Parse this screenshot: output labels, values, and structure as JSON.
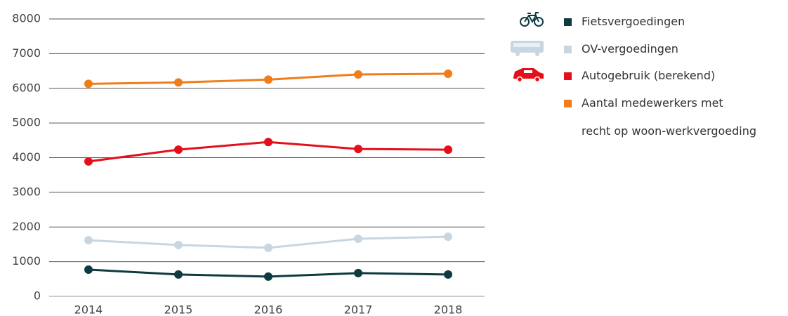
{
  "chart_data": {
    "type": "line",
    "categories": [
      "2014",
      "2015",
      "2016",
      "2017",
      "2018"
    ],
    "series": [
      {
        "name": "Fietsvergoedingen",
        "color": "#0d3b40",
        "values": [
          770,
          630,
          570,
          670,
          630
        ]
      },
      {
        "name": "OV-vergoedingen",
        "color": "#c8d6e2",
        "values": [
          1620,
          1480,
          1400,
          1660,
          1720
        ]
      },
      {
        "name": "Autogebruik (berekend)",
        "color": "#e3101b",
        "values": [
          3890,
          4230,
          4450,
          4250,
          4230
        ]
      },
      {
        "name": "Aantal medewerkers met\nrecht op woon-werkvergoeding",
        "color": "#f07d1a",
        "values": [
          6130,
          6170,
          6250,
          6400,
          6420
        ]
      }
    ],
    "ylim": [
      0,
      8000
    ],
    "yticks": [
      0,
      1000,
      2000,
      3000,
      4000,
      5000,
      6000,
      7000,
      8000
    ],
    "grid": true
  }
}
